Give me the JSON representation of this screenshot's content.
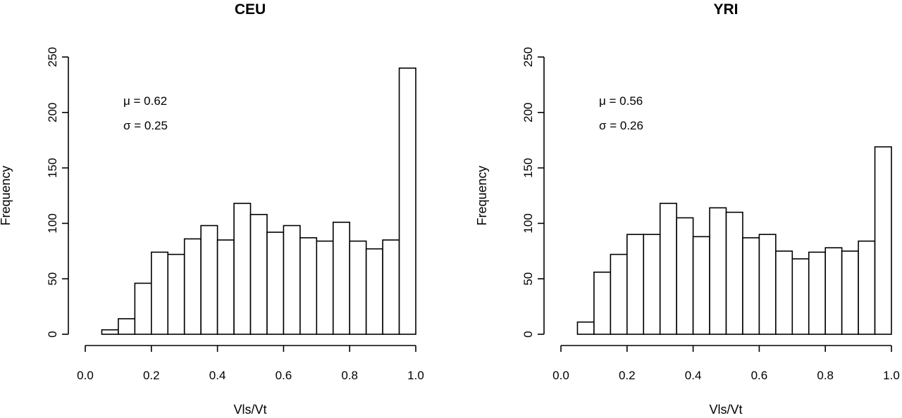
{
  "chart_data": [
    {
      "type": "bar",
      "title": "CEU",
      "xlabel": "Vls/Vt",
      "ylabel": "Frequency",
      "xlim": [
        0.0,
        1.0
      ],
      "ylim": [
        0,
        250
      ],
      "x_ticks": [
        "0.0",
        "0.2",
        "0.4",
        "0.6",
        "0.8",
        "1.0"
      ],
      "y_ticks": [
        "0",
        "50",
        "100",
        "150",
        "200",
        "250"
      ],
      "bin_width": 0.05,
      "bin_starts": [
        0.05,
        0.1,
        0.15,
        0.2,
        0.25,
        0.3,
        0.35,
        0.4,
        0.45,
        0.5,
        0.55,
        0.6,
        0.65,
        0.7,
        0.75,
        0.8,
        0.85,
        0.9,
        0.95
      ],
      "values": [
        4,
        14,
        46,
        74,
        72,
        86,
        98,
        85,
        118,
        108,
        92,
        98,
        87,
        84,
        101,
        84,
        77,
        85,
        240
      ],
      "annotations": [
        {
          "symbol": "μ",
          "text": " = 0.62"
        },
        {
          "symbol": "σ",
          "text": " = 0.25"
        }
      ]
    },
    {
      "type": "bar",
      "title": "YRI",
      "xlabel": "Vls/Vt",
      "ylabel": "Frequency",
      "xlim": [
        0.0,
        1.0
      ],
      "ylim": [
        0,
        250
      ],
      "x_ticks": [
        "0.0",
        "0.2",
        "0.4",
        "0.6",
        "0.8",
        "1.0"
      ],
      "y_ticks": [
        "0",
        "50",
        "100",
        "150",
        "200",
        "250"
      ],
      "bin_width": 0.05,
      "bin_starts": [
        0.05,
        0.1,
        0.15,
        0.2,
        0.25,
        0.3,
        0.35,
        0.4,
        0.45,
        0.5,
        0.55,
        0.6,
        0.65,
        0.7,
        0.75,
        0.8,
        0.85,
        0.9,
        0.95
      ],
      "values": [
        11,
        56,
        72,
        90,
        90,
        118,
        105,
        88,
        114,
        110,
        87,
        90,
        75,
        68,
        74,
        78,
        75,
        84,
        169
      ],
      "annotations": [
        {
          "symbol": "μ",
          "text": " = 0.56"
        },
        {
          "symbol": "σ",
          "text": " = 0.26"
        }
      ]
    }
  ]
}
